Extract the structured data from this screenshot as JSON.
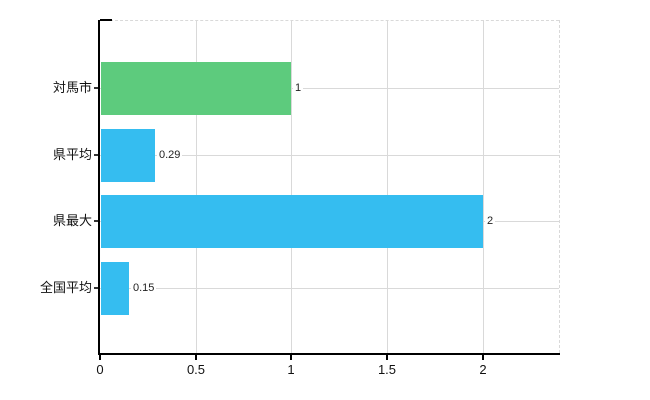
{
  "chart_data": {
    "type": "bar",
    "orientation": "horizontal",
    "title": "",
    "xlabel": "",
    "ylabel": "",
    "categories": [
      "対馬市",
      "県平均",
      "県最大",
      "全国平均"
    ],
    "values": [
      1,
      0.29,
      2,
      0.15
    ],
    "value_labels": [
      "1",
      "0.29",
      "2",
      "0.15"
    ],
    "bar_colors": [
      "#5dcb7d",
      "#35bdf0",
      "#35bdf0",
      "#35bdf0"
    ],
    "x_ticks": [
      0,
      0.5,
      1,
      1.5,
      2
    ],
    "x_tick_labels": [
      "0",
      "0.5",
      "1",
      "1.5",
      "2"
    ],
    "xlim": [
      0,
      2.4
    ],
    "grid": true,
    "legend_position": "none",
    "colors": {
      "axis": "#000000",
      "grid": "#d9d9d9",
      "plot_border": "#d9d9d9",
      "background": "#ffffff",
      "tick": "#333333",
      "label_text": "#111111",
      "value_text": "#222222"
    }
  }
}
